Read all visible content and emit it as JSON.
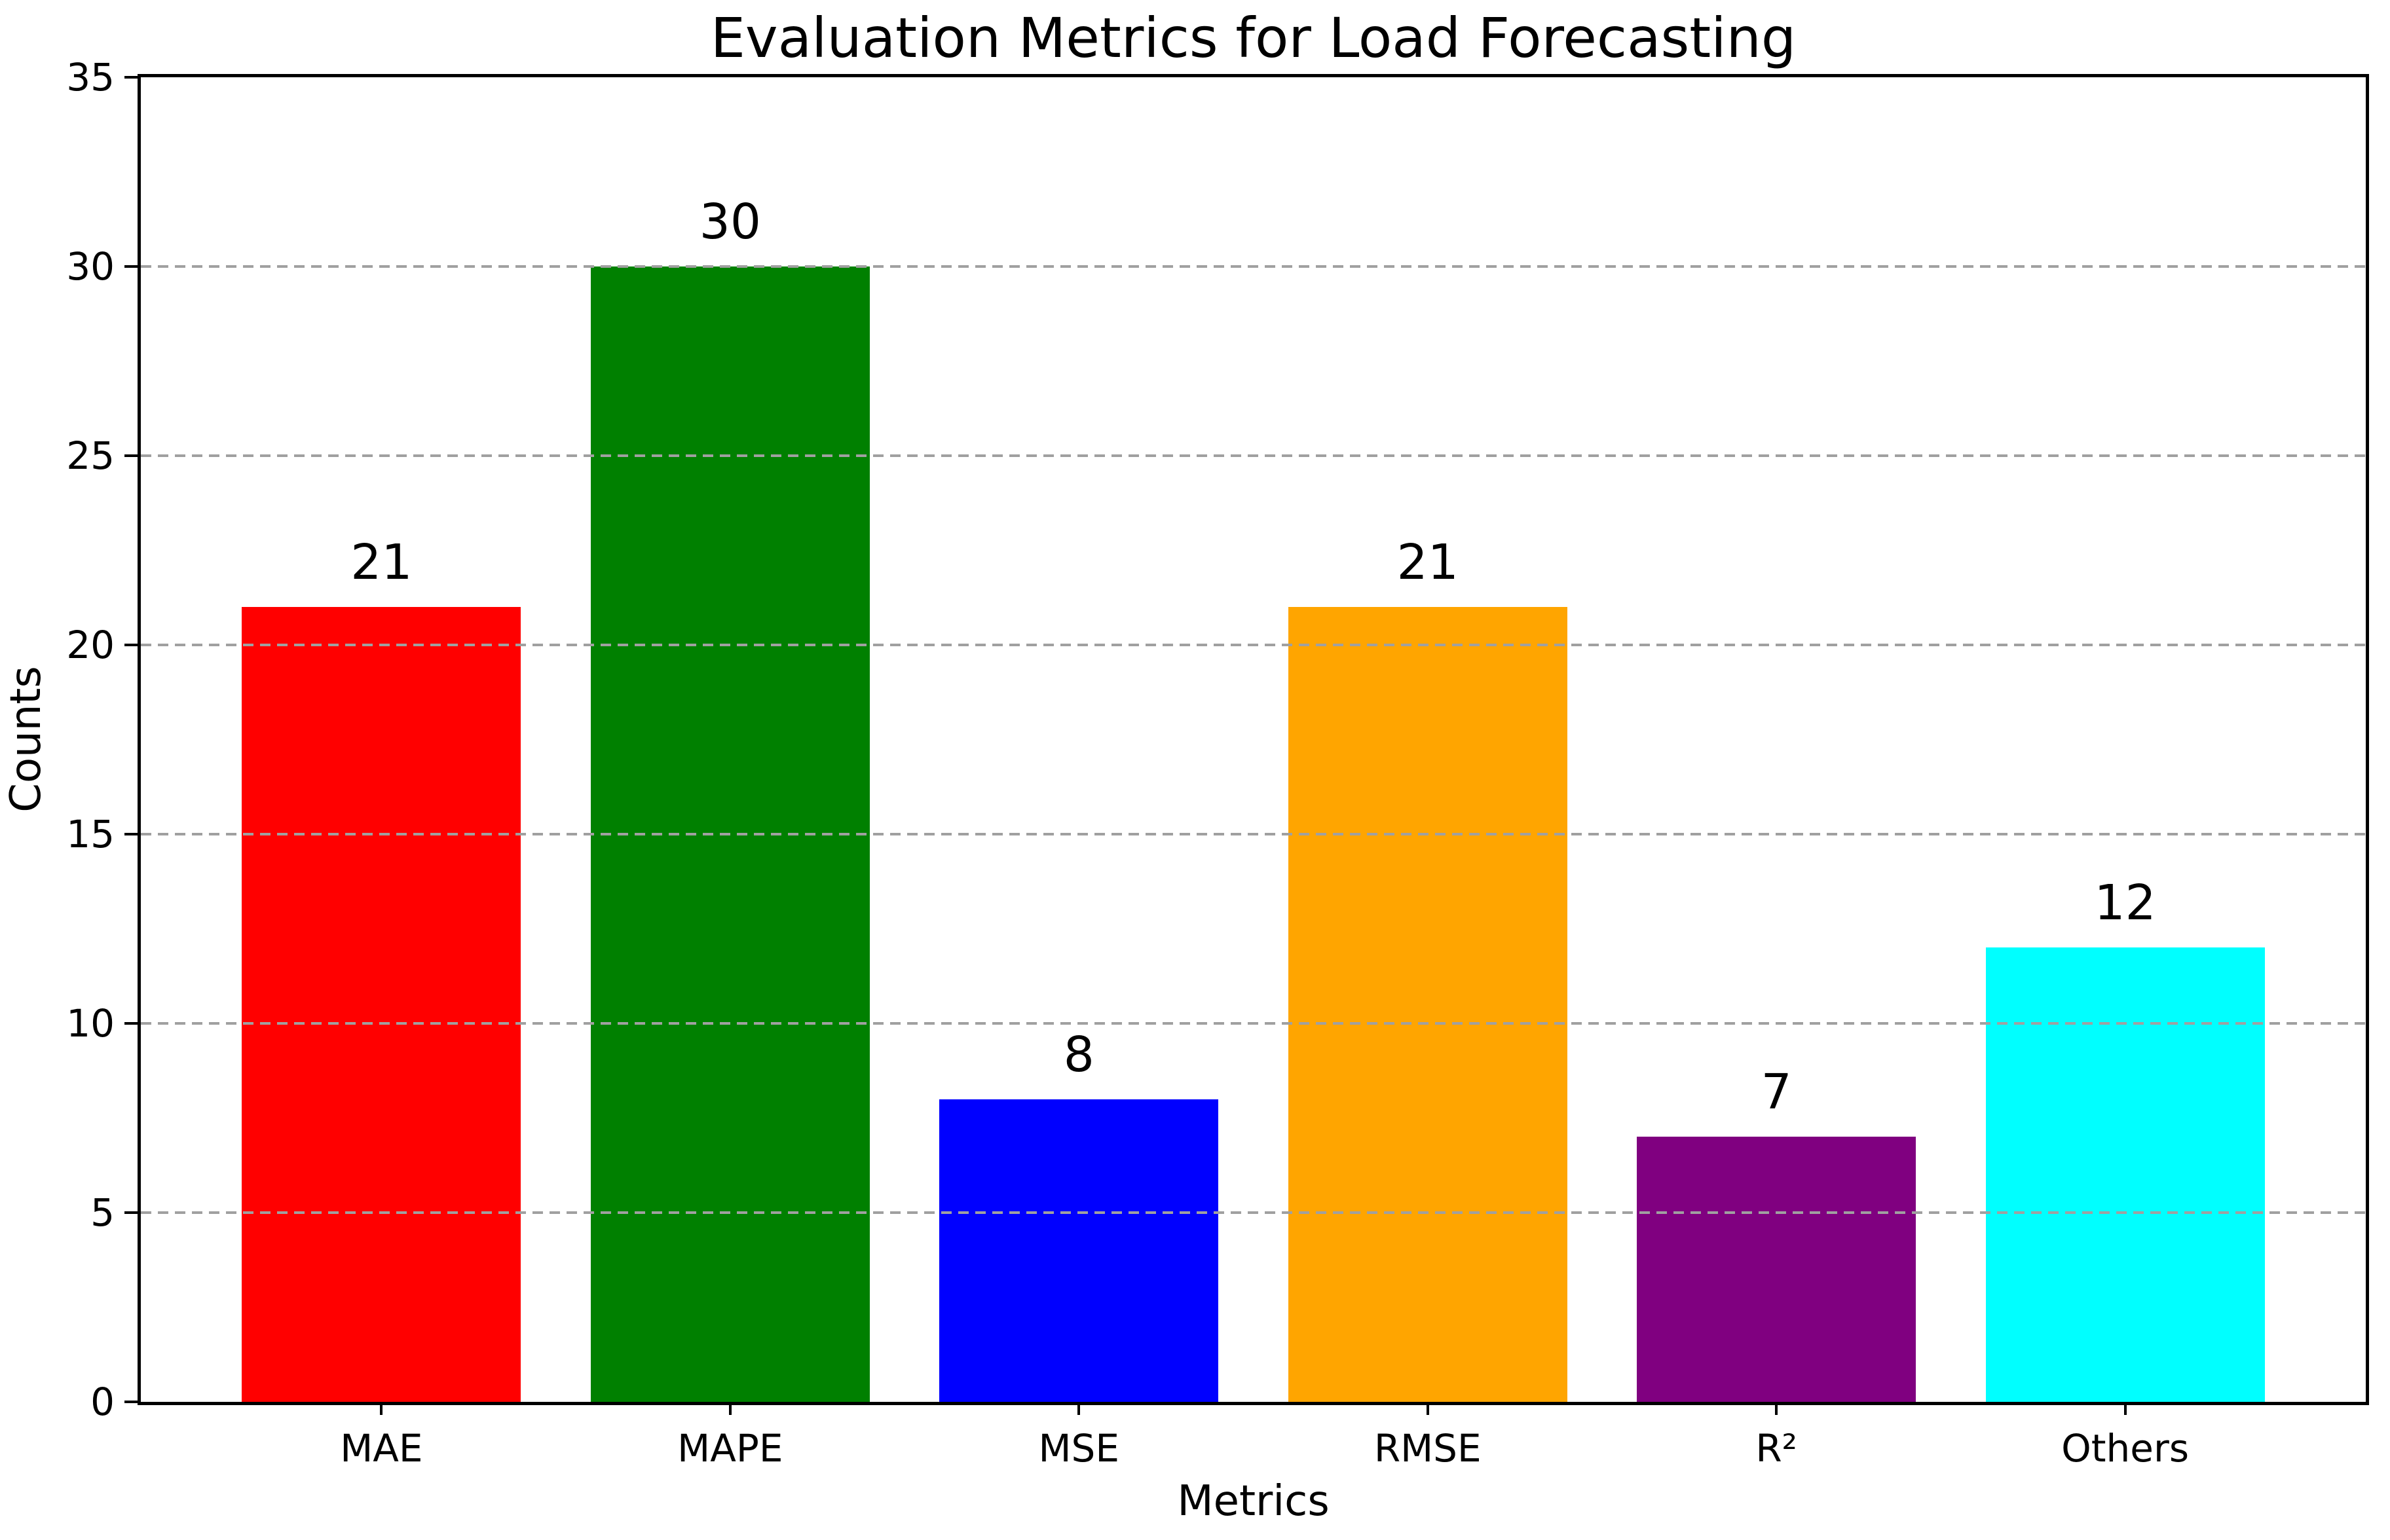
{
  "chart_data": {
    "type": "bar",
    "title": "Evaluation Metrics for Load Forecasting",
    "xlabel": "Metrics",
    "ylabel": "Counts",
    "categories": [
      "MAE",
      "MAPE",
      "MSE",
      "RMSE",
      "R²",
      "Others"
    ],
    "values": [
      21,
      30,
      8,
      21,
      7,
      12
    ],
    "bar_value_labels": [
      "21",
      "30",
      "8",
      "21",
      "7",
      "12"
    ],
    "bar_colors": [
      "#ff0000",
      "#008000",
      "#0000ff",
      "#ffa500",
      "#800080",
      "#00ffff"
    ],
    "ylim": [
      0,
      35
    ],
    "yticks": [
      0,
      5,
      10,
      15,
      20,
      25,
      30,
      35
    ],
    "grid": "horizontal-dashed",
    "grid_color": "#a0a0a0",
    "grid_above_bars": true,
    "legend": "none",
    "background_color": "#ffffff",
    "axis_color": "#000000"
  }
}
